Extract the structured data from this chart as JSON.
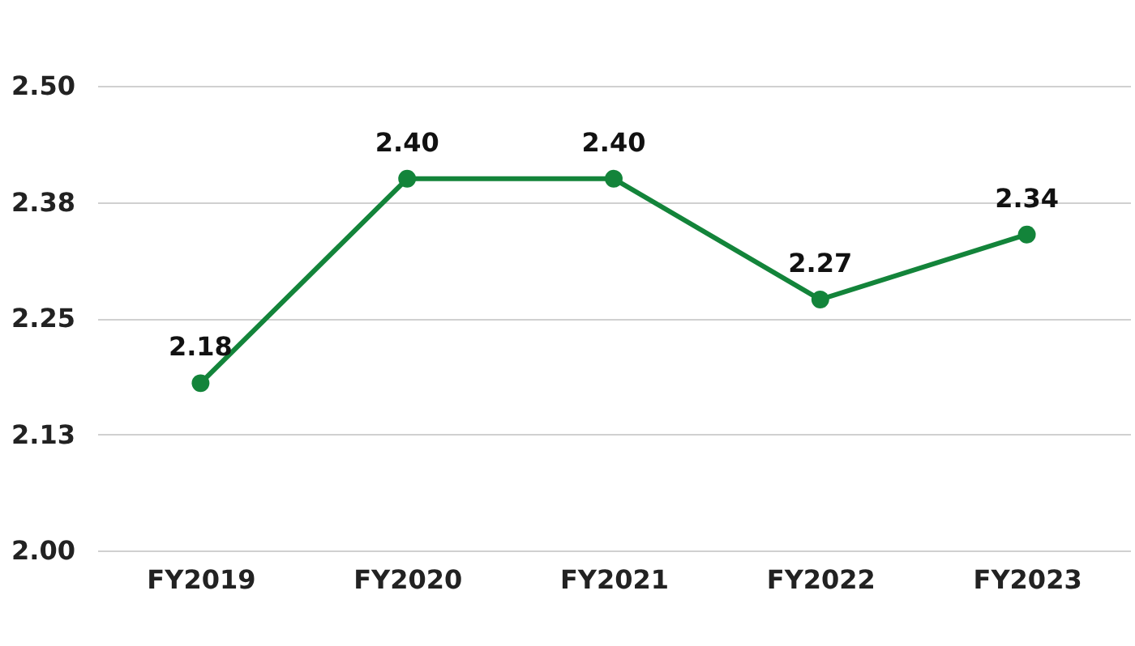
{
  "chart_data": {
    "type": "line",
    "categories": [
      "FY2019",
      "FY2020",
      "FY2021",
      "FY2022",
      "FY2023"
    ],
    "series": [
      {
        "color": "#13843a",
        "values": [
          2.18,
          2.4,
          2.4,
          2.27,
          2.34
        ],
        "value_labels": [
          "2.18",
          "2.40",
          "2.40",
          "2.27",
          "2.34"
        ]
      }
    ],
    "ylim": [
      2.0,
      2.5
    ],
    "yticks": [
      {
        "value": 2.0,
        "label": "2.00"
      },
      {
        "value": 2.125,
        "label": "2.13"
      },
      {
        "value": 2.25,
        "label": "2.25"
      },
      {
        "value": 2.375,
        "label": "2.38"
      },
      {
        "value": 2.5,
        "label": "2.50"
      }
    ],
    "grid": "y",
    "marker": "circle",
    "line_style": "solid",
    "legend": false
  }
}
